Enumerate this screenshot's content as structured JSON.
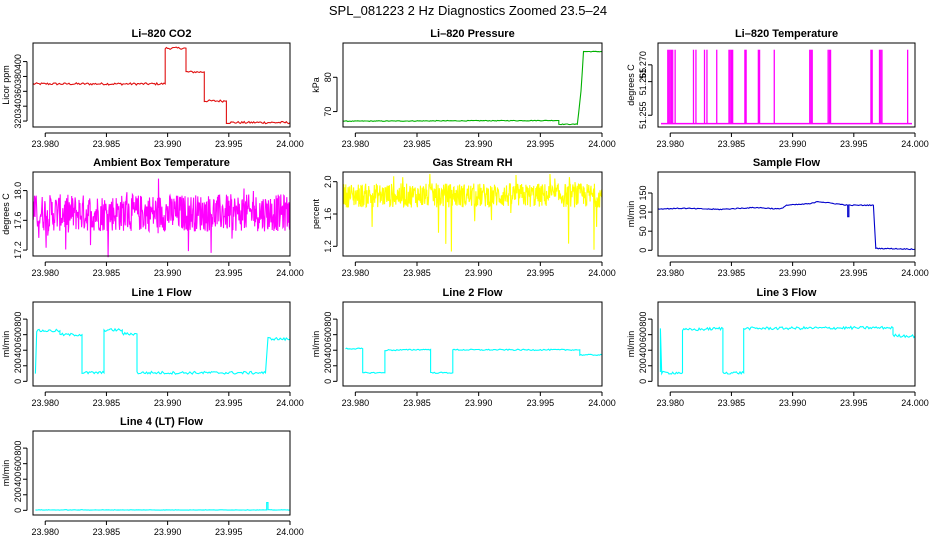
{
  "figure_title": "SPL_081223  2 Hz Diagnostics Zoomed 23.5–24",
  "colors": {
    "red": "#e01010",
    "green": "#00b000",
    "magenta": "#ff00ff",
    "yellow": "#ffff00",
    "blue": "#0000cc",
    "cyan": "#00ffff",
    "axis": "#000000"
  },
  "chart_data": [
    {
      "type": "line",
      "title": "Li–820 CO2",
      "ylabel": "Licor ppm",
      "color": "#e01010",
      "xlim": [
        23.979,
        24.0
      ],
      "xticks": [
        "23.980",
        "23.985",
        "23.990",
        "23.995",
        "24.000"
      ],
      "ylim": [
        312,
        425
      ],
      "yticks": [
        "320",
        "340",
        "360",
        "380",
        "400"
      ],
      "ytick_values": [
        320,
        340,
        360,
        380,
        400
      ],
      "noise": 1.5,
      "series": [
        {
          "x": [
            23.979,
            23.9898,
            23.9898,
            23.9915,
            23.9915,
            23.993,
            23.993,
            23.9948,
            23.9948,
            23.998,
            24.0
          ],
          "y": [
            370,
            370,
            418,
            418,
            386,
            386,
            347,
            347,
            318,
            318,
            318
          ]
        }
      ]
    },
    {
      "type": "line",
      "title": "Li–820 Pressure",
      "ylabel": "kPa",
      "color": "#00b000",
      "xlim": [
        23.979,
        24.0
      ],
      "xticks": [
        "23.980",
        "23.985",
        "23.990",
        "23.995",
        "24.000"
      ],
      "ylim": [
        65.5,
        90
      ],
      "yticks": [
        "70",
        "80"
      ],
      "ytick_values": [
        70,
        80
      ],
      "noise": 0.1,
      "series": [
        {
          "x": [
            23.979,
            23.9965,
            23.9965,
            23.998,
            23.9983,
            23.9985,
            24.0
          ],
          "y": [
            67.2,
            67.4,
            66.3,
            66.3,
            76,
            87.5,
            87.5
          ]
        }
      ]
    },
    {
      "type": "spikes",
      "title": "Li–820 Temperature",
      "ylabel": "degrees C",
      "color": "#ff00ff",
      "xlim": [
        23.979,
        24.0
      ],
      "xticks": [
        "23.980",
        "23.985",
        "23.990",
        "23.995",
        "24.000"
      ],
      "ylim": [
        51.2515,
        51.2765
      ],
      "yticks": [
        "51.255",
        "51.265",
        "51.270"
      ],
      "ytick_values": [
        51.255,
        51.265,
        51.27
      ],
      "base": 51.2525,
      "top": 51.2745,
      "spikes_x": [
        23.9798,
        23.9799,
        23.98,
        23.9801,
        23.9802,
        23.9804,
        23.9819,
        23.9821,
        23.9828,
        23.983,
        23.9838,
        23.9848,
        23.9849,
        23.985,
        23.9851,
        23.9861,
        23.9862,
        23.9872,
        23.9873,
        23.9885,
        23.9914,
        23.9915,
        23.9916,
        23.9929,
        23.993,
        23.9931,
        23.9964,
        23.9965,
        23.9971,
        23.9972,
        23.9973,
        23.9994
      ]
    },
    {
      "type": "line",
      "title": "Ambient Box Temperature",
      "ylabel": "degrees C",
      "color": "#ff00ff",
      "xlim": [
        23.979,
        24.0
      ],
      "xticks": [
        "23.980",
        "23.985",
        "23.990",
        "23.995",
        "24.000"
      ],
      "ylim": [
        17.12,
        18.25
      ],
      "yticks": [
        "17.2",
        "17.6",
        "18.0"
      ],
      "ytick_values": [
        17.2,
        17.6,
        18.0
      ],
      "noise_band": [
        17.45,
        17.95
      ],
      "noise_extremes": [
        17.1,
        18.2
      ],
      "series": [
        {
          "x": [
            23.979,
            24.0
          ],
          "y": [
            17.7,
            17.7
          ]
        }
      ]
    },
    {
      "type": "line",
      "title": "Gas Stream RH",
      "ylabel": "percent",
      "color": "#ffff00",
      "xlim": [
        23.979,
        24.0
      ],
      "xticks": [
        "23.980",
        "23.985",
        "23.990",
        "23.995",
        "24.000"
      ],
      "ylim": [
        1.08,
        2.12
      ],
      "yticks": [
        "1.2",
        "1.6",
        "2.0"
      ],
      "ytick_values": [
        1.2,
        1.6,
        2.0
      ],
      "noise_band": [
        1.68,
        1.98
      ],
      "noise_extremes": [
        1.1,
        2.1
      ],
      "series": [
        {
          "x": [
            23.979,
            24.0
          ],
          "y": [
            1.85,
            1.85
          ]
        }
      ]
    },
    {
      "type": "line",
      "title": "Sample Flow",
      "ylabel": "ml/min",
      "color": "#0000cc",
      "xlim": [
        23.979,
        24.0
      ],
      "xticks": [
        "23.980",
        "23.985",
        "23.990",
        "23.995",
        "24.000"
      ],
      "ylim": [
        -15,
        205
      ],
      "yticks": [
        "0",
        "50",
        "100",
        "150"
      ],
      "ytick_values": [
        0,
        50,
        100,
        150
      ],
      "noise": 1.2,
      "series": [
        {
          "x": [
            23.979,
            23.981,
            23.984,
            23.987,
            23.989,
            23.9895,
            23.9915,
            23.992,
            23.9935,
            23.9945,
            23.9945,
            23.9946,
            23.9946,
            23.9966,
            23.9968,
            24.0
          ],
          "y": [
            108,
            110,
            107,
            112,
            108,
            118,
            122,
            128,
            122,
            118,
            88,
            88,
            118,
            118,
            5,
            3
          ]
        }
      ]
    },
    {
      "type": "line",
      "title": "Line 1 Flow",
      "ylabel": "ml/min",
      "color": "#00ffff",
      "xlim": [
        23.979,
        24.0
      ],
      "xticks": [
        "23.980",
        "23.985",
        "23.990",
        "23.995",
        "24.000"
      ],
      "ylim": [
        -60,
        1020
      ],
      "yticks": [
        "0",
        "200",
        "400",
        "600",
        "800"
      ],
      "ytick_values": [
        0,
        200,
        400,
        600,
        800
      ],
      "noise": 18,
      "series": [
        {
          "x": [
            23.9792,
            23.9793,
            23.9812,
            23.9812,
            23.983,
            23.983,
            23.9848,
            23.9848,
            23.9863,
            23.9863,
            23.9875,
            23.9875,
            23.998,
            23.9982,
            24.0
          ],
          "y": [
            100,
            650,
            650,
            600,
            600,
            110,
            110,
            660,
            660,
            610,
            610,
            110,
            110,
            550,
            540
          ]
        }
      ]
    },
    {
      "type": "line",
      "title": "Line 2 Flow",
      "ylabel": "ml/min",
      "color": "#00ffff",
      "xlim": [
        23.979,
        24.0
      ],
      "xticks": [
        "23.980",
        "23.985",
        "23.990",
        "23.995",
        "24.000"
      ],
      "ylim": [
        -60,
        1020
      ],
      "yticks": [
        "0",
        "200",
        "400",
        "600",
        "800"
      ],
      "ytick_values": [
        0,
        200,
        400,
        600,
        800
      ],
      "noise": 8,
      "series": [
        {
          "x": [
            23.9792,
            23.9806,
            23.9806,
            23.9824,
            23.9824,
            23.9861,
            23.9861,
            23.9879,
            23.9879,
            23.9982,
            23.9982,
            24.0
          ],
          "y": [
            420,
            420,
            110,
            110,
            400,
            410,
            110,
            110,
            405,
            405,
            340,
            340
          ]
        }
      ]
    },
    {
      "type": "line",
      "title": "Line 3 Flow",
      "ylabel": "ml/min",
      "color": "#00ffff",
      "xlim": [
        23.979,
        24.0
      ],
      "xticks": [
        "23.980",
        "23.985",
        "23.990",
        "23.995",
        "24.000"
      ],
      "ylim": [
        -60,
        1020
      ],
      "yticks": [
        "0",
        "200",
        "400",
        "600",
        "800"
      ],
      "ytick_values": [
        0,
        200,
        400,
        600,
        800
      ],
      "noise": 18,
      "series": [
        {
          "x": [
            23.9792,
            23.9792,
            23.9793,
            23.981,
            23.981,
            23.9843,
            23.9843,
            23.986,
            23.986,
            23.9982,
            23.9982,
            24.0
          ],
          "y": [
            120,
            680,
            110,
            110,
            660,
            680,
            110,
            110,
            680,
            690,
            590,
            580
          ]
        }
      ]
    },
    {
      "type": "line",
      "title": "Line 4 (LT) Flow",
      "ylabel": "ml/min",
      "color": "#00ffff",
      "xlim": [
        23.979,
        24.0
      ],
      "xticks": [
        "23.980",
        "23.985",
        "23.990",
        "23.995",
        "24.000"
      ],
      "ylim": [
        -60,
        1020
      ],
      "yticks": [
        "0",
        "200",
        "400",
        "600",
        "800"
      ],
      "ytick_values": [
        0,
        200,
        400,
        600,
        800
      ],
      "noise": 3,
      "series": [
        {
          "x": [
            23.9792,
            23.9981,
            23.9981,
            23.9982,
            23.9982,
            24.0
          ],
          "y": [
            5,
            5,
            100,
            100,
            5,
            5
          ]
        }
      ]
    }
  ]
}
